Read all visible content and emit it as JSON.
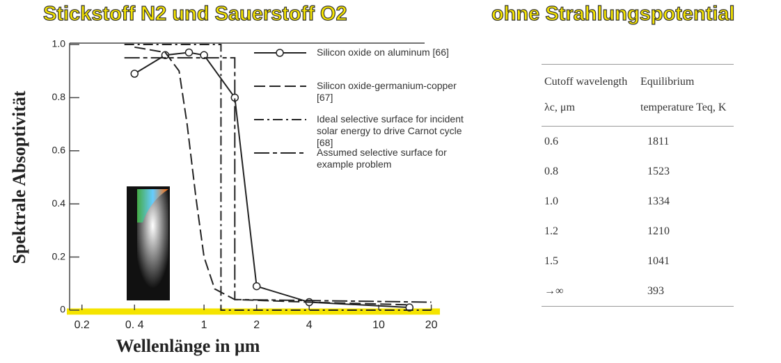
{
  "header": {
    "title_left": "Stickstoff N2 und Sauerstoff O2",
    "title_right": "ohne Strahlungspotential"
  },
  "chart_data": {
    "type": "line",
    "xlabel": "Wellenlänge in μm",
    "ylabel": "Spektrale Absoptivität",
    "xscale": "log",
    "xlim": [
      0.17,
      22
    ],
    "ylim": [
      0,
      1.0
    ],
    "xticks": [
      0.2,
      {
        "value": 0.4,
        "label": "0. 4"
      },
      1,
      2,
      4,
      10,
      20
    ],
    "yticks": [
      0,
      0.2,
      0.4,
      0.6,
      0.8,
      {
        "value": 1,
        "label": "1.0"
      }
    ],
    "series": [
      {
        "name": "Silicon oxide on aluminum [66]",
        "color": "#222222",
        "dash": "solid",
        "marker": "circle",
        "x": [
          0.4,
          0.6,
          0.82,
          1.0,
          1.5,
          2.0,
          4.0,
          15.0
        ],
        "values": [
          0.89,
          0.96,
          0.97,
          0.96,
          0.8,
          0.09,
          0.03,
          0.01
        ]
      },
      {
        "name": "Silicon oxide-germanium-copper [67]",
        "color": "#222222",
        "dash": "dashed",
        "marker": "none",
        "x": [
          0.4,
          0.6,
          0.72,
          0.8,
          0.9,
          1.0,
          1.15,
          1.5,
          4.0,
          15.0
        ],
        "values": [
          0.99,
          0.97,
          0.9,
          0.7,
          0.42,
          0.2,
          0.08,
          0.04,
          0.03,
          0.02
        ]
      },
      {
        "name": "Ideal selective surface for incident solar energy to drive Carnot cycle [68]",
        "color": "#222222",
        "dash": "dashdot",
        "marker": "none",
        "x": [
          0.35,
          1.25,
          1.25,
          20.0
        ],
        "values": [
          1.0,
          1.0,
          0.0,
          0.0
        ]
      },
      {
        "name": "Assumed selective surface for example problem",
        "color": "#222222",
        "dash": "longshort",
        "marker": "none",
        "x": [
          0.35,
          1.5,
          1.5,
          20.0
        ],
        "values": [
          0.95,
          0.95,
          0.04,
          0.03
        ]
      }
    ]
  },
  "table": {
    "header": [
      "Cutoff wavelength λc, μm",
      "Equilibrium temperature Teq, K"
    ],
    "rows": [
      [
        "0.6",
        "1811"
      ],
      [
        "0.8",
        "1523"
      ],
      [
        "1.0",
        "1334"
      ],
      [
        "1.2",
        "1210"
      ],
      [
        "1.5",
        "1041"
      ],
      [
        "→∞",
        "393"
      ]
    ]
  }
}
